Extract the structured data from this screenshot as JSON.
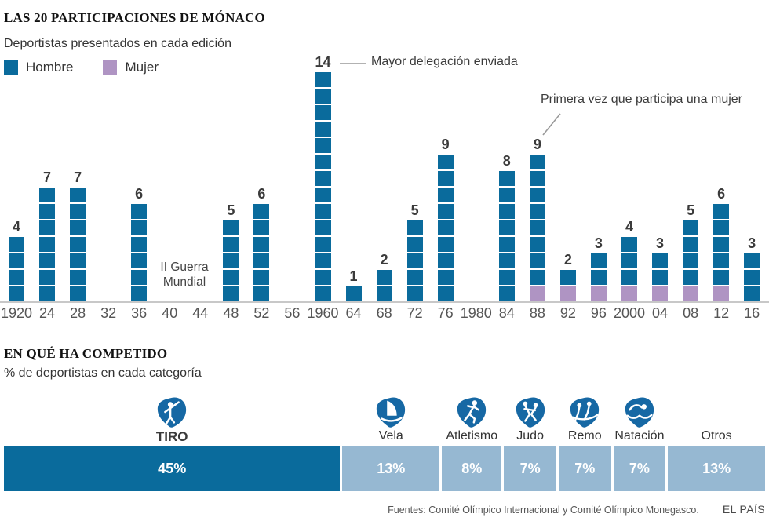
{
  "colors": {
    "hombre_blue": "#0a6b9c",
    "mujer_purple": "#af94c3",
    "light_blue": "#96b8d2",
    "pictogram_blue": "#1668a4",
    "axis_gray": "#c8c8c8"
  },
  "chart1": {
    "title": "LAS 20 PARTICIPACIONES DE MÓNACO",
    "subtitle": "Deportistas presentados en cada edición",
    "war_note_lines": [
      "II Guerra",
      "Mundial"
    ],
    "annotation_max": "Mayor delegación enviada",
    "annotation_first_woman": "Primera vez que participa una mujer"
  },
  "chart2": {
    "title": "EN QUÉ HA COMPETIDO",
    "subtitle": "% de deportistas en cada categoría"
  },
  "chart_data": [
    {
      "type": "bar",
      "title": "LAS 20 PARTICIPACIONES DE MÓNACO",
      "subtitle": "Deportistas presentados en cada edición",
      "categories": [
        "1920",
        "24",
        "28",
        "32",
        "36",
        "40",
        "44",
        "48",
        "52",
        "56",
        "1960",
        "64",
        "68",
        "72",
        "76",
        "1980",
        "84",
        "88",
        "92",
        "96",
        "2000",
        "04",
        "08",
        "12",
        "16"
      ],
      "series": [
        {
          "name": "Hombre",
          "color": "#0a6b9c",
          "values": [
            4,
            7,
            7,
            0,
            6,
            0,
            0,
            5,
            6,
            0,
            14,
            1,
            2,
            5,
            9,
            0,
            8,
            8,
            1,
            2,
            3,
            2,
            4,
            5,
            3
          ]
        },
        {
          "name": "Mujer",
          "color": "#af94c3",
          "values": [
            0,
            0,
            0,
            0,
            0,
            0,
            0,
            0,
            0,
            0,
            0,
            0,
            0,
            0,
            0,
            0,
            0,
            1,
            1,
            1,
            1,
            1,
            1,
            1,
            0
          ]
        }
      ],
      "totals": [
        4,
        7,
        7,
        0,
        6,
        0,
        0,
        5,
        6,
        0,
        14,
        1,
        2,
        5,
        9,
        0,
        8,
        9,
        2,
        3,
        4,
        3,
        5,
        6,
        3
      ],
      "ylim": [
        0,
        14
      ],
      "legend_position": "top-left",
      "grid": false,
      "annotations": [
        "Mayor delegación enviada",
        "Primera vez que participa una mujer",
        "II Guerra Mundial"
      ]
    },
    {
      "type": "bar",
      "orientation": "horizontal-stacked",
      "title": "EN QUÉ HA COMPETIDO",
      "subtitle": "% de deportistas en cada categoría",
      "categories": [
        "TIRO",
        "Vela",
        "Atletismo",
        "Judo",
        "Remo",
        "Natación",
        "Otros"
      ],
      "values": [
        45,
        13,
        8,
        7,
        7,
        7,
        13
      ],
      "labels": [
        "45%",
        "13%",
        "8%",
        "7%",
        "7%",
        "7%",
        "13%"
      ],
      "icons": [
        "tiro",
        "vela",
        "atletismo",
        "judo",
        "remo",
        "natacion",
        null
      ],
      "highlight_color": "#0a6b9c",
      "rest_color": "#96b8d2"
    }
  ],
  "footer": {
    "sources": "Fuentes: Comité Olímpico Internacional y Comité Olímpico Monegasco.",
    "brand": "EL PAÍS"
  }
}
